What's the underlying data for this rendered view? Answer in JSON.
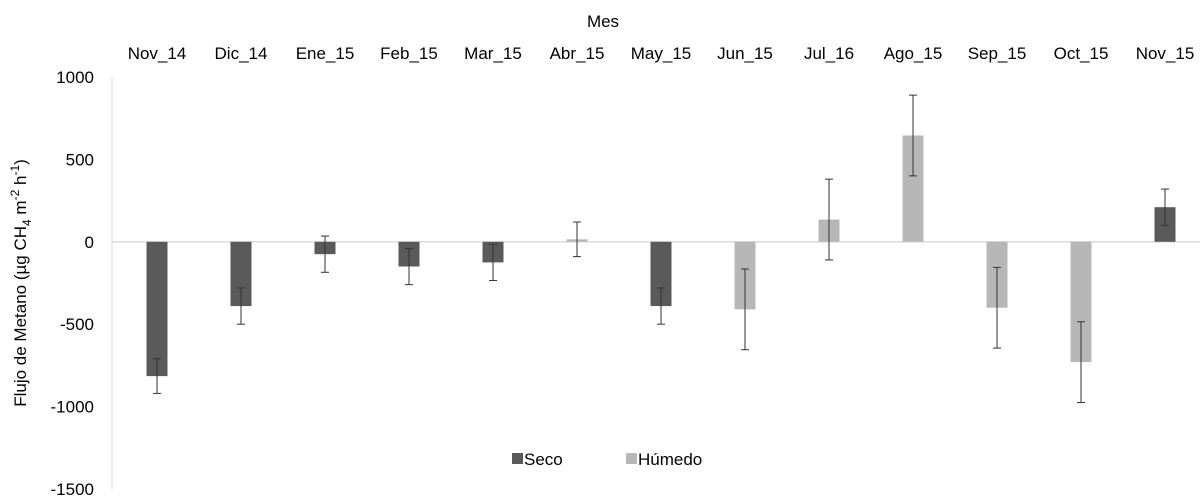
{
  "chart_data": {
    "type": "bar",
    "title": "",
    "xlabel": "Mes",
    "ylabel": "Flujo de Metano (µg CH4 m-2 h-1)",
    "ylabel_parts": {
      "base": "Flujo de Metano (µg CH",
      "sub": "4",
      "m": " m",
      "m_exp": "-2",
      "h": " h",
      "h_exp": "-1",
      "end": ")"
    },
    "ylim": [
      -1500,
      1000
    ],
    "yticks": [
      1000,
      500,
      0,
      -500,
      -1000,
      -1500
    ],
    "ytick_labels": [
      "1000",
      "500",
      "0",
      "-500",
      "-1000",
      "-1500"
    ],
    "x_axis_position": "top",
    "grid": false,
    "legend_position": "bottom-center",
    "categories": [
      "Nov_14",
      "Dic_14",
      "Ene_15",
      "Feb_15",
      "Mar_15",
      "Abr_15",
      "May_15",
      "Jun_15",
      "Jul_16",
      "Ago_15",
      "Sep_15",
      "Oct_15",
      "Nov_15"
    ],
    "series": [
      {
        "name": "Seco",
        "color": "#5a5a5a",
        "values": [
          -815,
          -390,
          -75,
          -150,
          -125,
          null,
          -390,
          null,
          null,
          null,
          null,
          null,
          210
        ],
        "errors": [
          105,
          110,
          110,
          110,
          110,
          null,
          110,
          null,
          null,
          null,
          null,
          null,
          110
        ]
      },
      {
        "name": "Húmedo",
        "color": "#b7b7b7",
        "values": [
          null,
          null,
          null,
          null,
          null,
          15,
          null,
          -410,
          135,
          645,
          -400,
          -730,
          null
        ],
        "errors": [
          null,
          null,
          null,
          null,
          null,
          105,
          null,
          245,
          245,
          245,
          245,
          245,
          null
        ]
      }
    ]
  }
}
